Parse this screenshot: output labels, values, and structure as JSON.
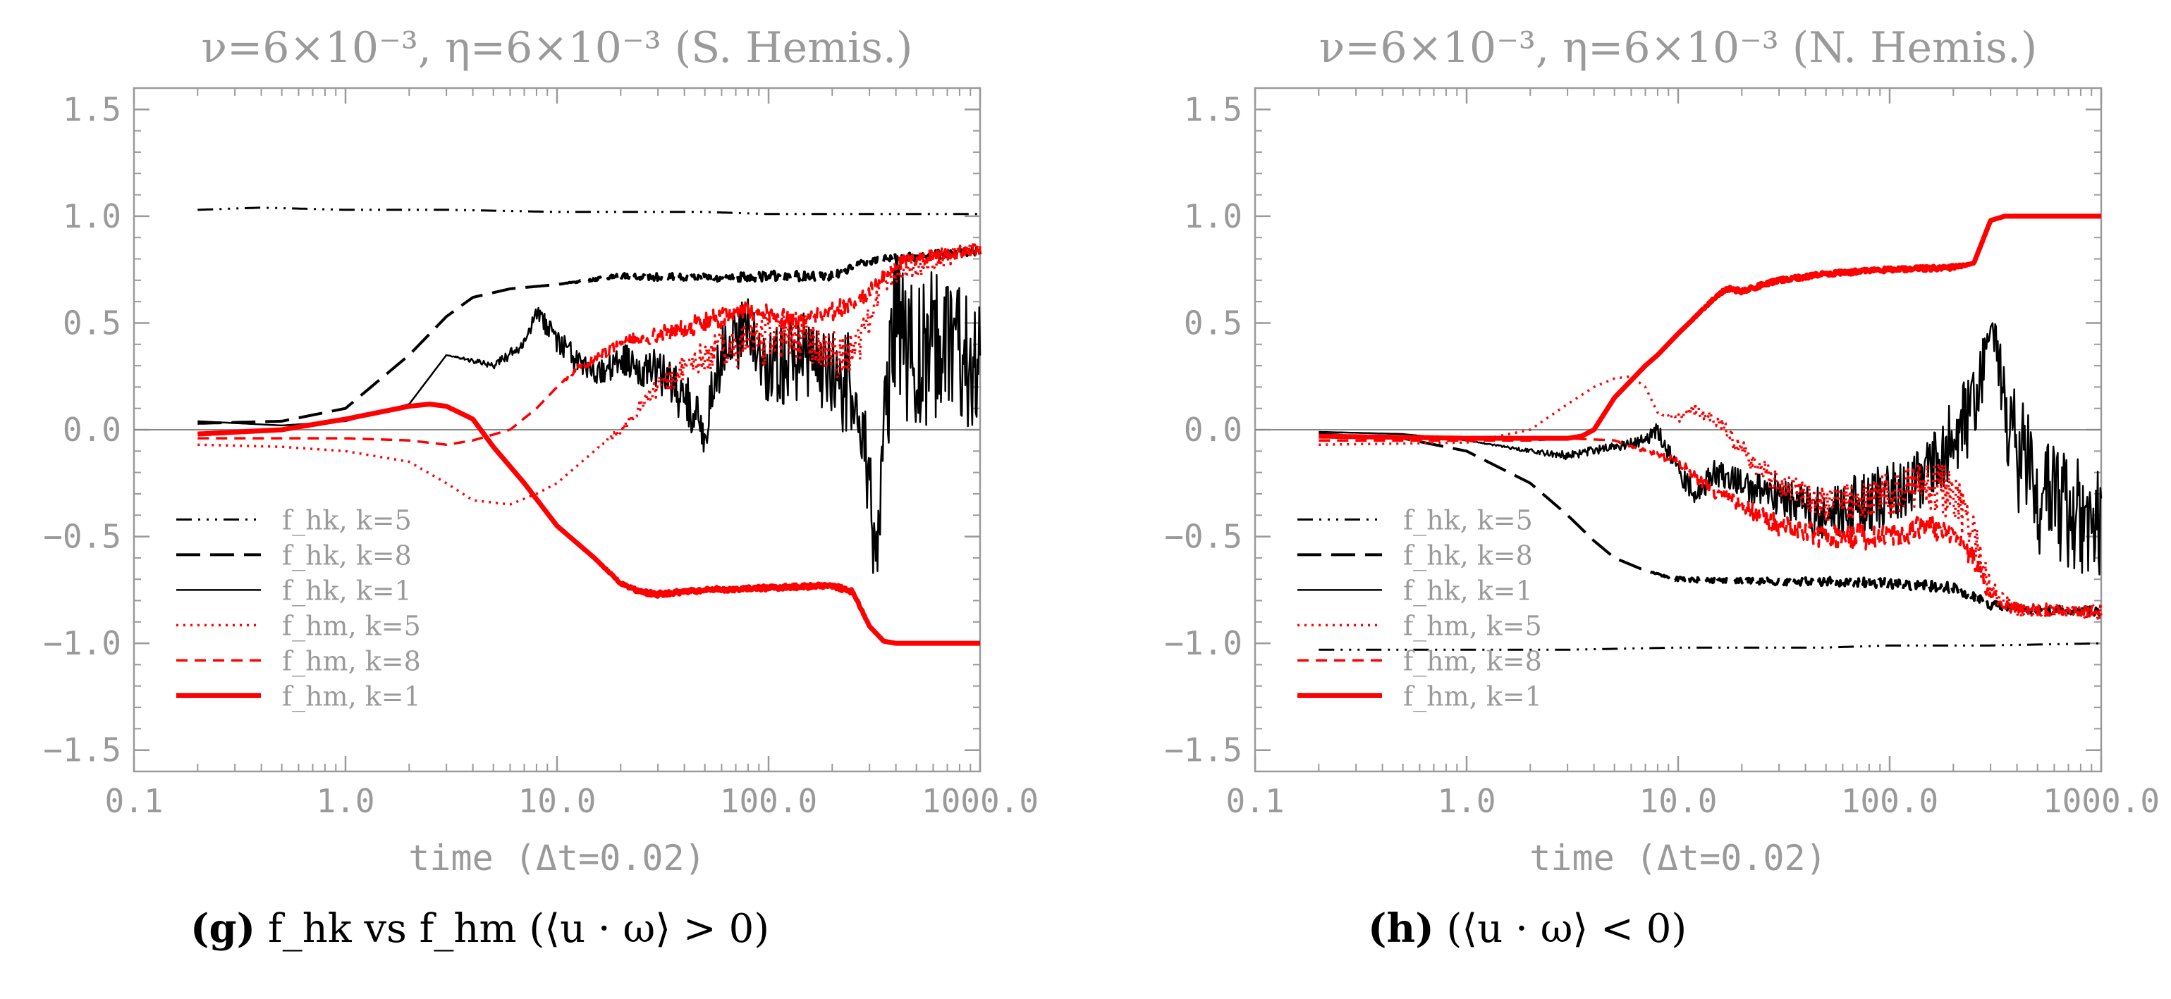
{
  "colors": {
    "black": "#000000",
    "red": "#ff0000",
    "axis": "#9a9a9a",
    "zero": "#888888"
  },
  "chart_data": [
    {
      "type": "line",
      "panel": "g",
      "title": "ν=6×10⁻³, η=6×10⁻³ (S. Hemis.)",
      "xlabel": "time (Δt=0.02)",
      "ylabel": "",
      "xscale": "log",
      "xlim": [
        0.1,
        1000.0
      ],
      "ylim": [
        -1.6,
        1.6
      ],
      "xticks": [
        "0.1",
        "1.0",
        "10.0",
        "100.0",
        "1000.0"
      ],
      "yticks": [
        "1.5",
        "1.0",
        "0.5",
        "0.0",
        "−0.5",
        "−1.0",
        "−1.5"
      ],
      "ytick_values": [
        1.5,
        1.0,
        0.5,
        0.0,
        -0.5,
        -1.0,
        -1.5
      ],
      "xtick_values": [
        0.1,
        1,
        10,
        100,
        1000
      ],
      "zero_line": true,
      "legend_position": "lower-left",
      "legend": [
        {
          "label": "f_hk, k=5",
          "color": "#000000",
          "style": "dashdotdot"
        },
        {
          "label": "f_hk, k=8",
          "color": "#000000",
          "style": "longdash"
        },
        {
          "label": "f_hk, k=1",
          "color": "#000000",
          "style": "solid"
        },
        {
          "label": "f_hm, k=5",
          "color": "#ff0000",
          "style": "dotted"
        },
        {
          "label": "f_hm, k=8",
          "color": "#ff0000",
          "style": "dashed"
        },
        {
          "label": "f_hm, k=1",
          "color": "#ff0000",
          "style": "thick"
        }
      ],
      "series": [
        {
          "name": "f_hk, k=5",
          "color": "#000000",
          "style": "dashdotdot",
          "x": [
            0.2,
            0.4,
            1,
            3,
            10,
            50,
            100,
            300,
            1000
          ],
          "y": [
            1.03,
            1.04,
            1.03,
            1.03,
            1.02,
            1.02,
            1.01,
            1.01,
            1.01
          ]
        },
        {
          "name": "f_hk, k=8",
          "color": "#000000",
          "style": "longdash",
          "x": [
            0.2,
            0.5,
            1,
            2,
            3,
            4,
            6,
            10,
            20,
            50,
            100,
            200,
            300,
            1000
          ],
          "y": [
            0.03,
            0.04,
            0.1,
            0.35,
            0.53,
            0.62,
            0.66,
            0.68,
            0.72,
            0.71,
            0.72,
            0.72,
            0.79,
            0.84
          ],
          "noise": [
            0,
            0,
            0,
            0,
            0,
            0,
            0,
            0,
            0.015,
            0.02,
            0.025,
            0.02,
            0.02,
            0.02
          ]
        },
        {
          "name": "f_hk, k=1",
          "color": "#000000",
          "style": "solid",
          "x": [
            0.2,
            0.5,
            1,
            2,
            3,
            5,
            7,
            8,
            10,
            13,
            15,
            20,
            30,
            50,
            60,
            80,
            100,
            150,
            200,
            250,
            300,
            320,
            350,
            400,
            500,
            600,
            800,
            1000
          ],
          "y": [
            0.04,
            0.02,
            0.04,
            0.12,
            0.35,
            0.3,
            0.4,
            0.55,
            0.42,
            0.3,
            0.25,
            0.32,
            0.28,
            0.02,
            0.35,
            0.45,
            0.3,
            0.35,
            0.25,
            0.2,
            -0.25,
            -0.6,
            0.0,
            0.5,
            0.3,
            0.4,
            0.35,
            0.3
          ],
          "noise": [
            0,
            0,
            0,
            0,
            0,
            0.02,
            0.03,
            0.04,
            0.06,
            0.06,
            0.06,
            0.08,
            0.1,
            0.15,
            0.15,
            0.18,
            0.2,
            0.2,
            0.22,
            0.25,
            0.25,
            0.2,
            0.3,
            0.35,
            0.35,
            0.35,
            0.35,
            0.3
          ]
        },
        {
          "name": "f_hm, k=5",
          "color": "#ff0000",
          "style": "dotted",
          "x": [
            0.2,
            0.5,
            1,
            2,
            3,
            4,
            6,
            8,
            10,
            15,
            20,
            30,
            50,
            80,
            100,
            150,
            200,
            250,
            300,
            350,
            1000
          ],
          "y": [
            -0.07,
            -0.08,
            -0.1,
            -0.15,
            -0.25,
            -0.33,
            -0.35,
            -0.3,
            -0.25,
            -0.1,
            0.0,
            0.2,
            0.35,
            0.4,
            0.42,
            0.45,
            0.35,
            0.35,
            0.5,
            0.7,
            0.86
          ],
          "noise": [
            0,
            0,
            0,
            0,
            0,
            0,
            0,
            0,
            0,
            0,
            0.02,
            0.05,
            0.08,
            0.1,
            0.12,
            0.12,
            0.12,
            0.1,
            0.08,
            0.05,
            0.03
          ]
        },
        {
          "name": "f_hm, k=8",
          "color": "#ff0000",
          "style": "dashed",
          "x": [
            0.2,
            1,
            2,
            3,
            4,
            6,
            8,
            10,
            13,
            20,
            30,
            50,
            70,
            100,
            150,
            200,
            250,
            300,
            400,
            1000
          ],
          "y": [
            -0.04,
            -0.04,
            -0.05,
            -0.07,
            -0.05,
            0.0,
            0.1,
            0.2,
            0.3,
            0.4,
            0.45,
            0.5,
            0.55,
            0.55,
            0.5,
            0.55,
            0.6,
            0.65,
            0.78,
            0.85
          ],
          "noise": [
            0,
            0,
            0,
            0,
            0,
            0,
            0,
            0,
            0.02,
            0.03,
            0.04,
            0.05,
            0.05,
            0.05,
            0.05,
            0.05,
            0.04,
            0.04,
            0.03,
            0.03
          ]
        },
        {
          "name": "f_hm, k=1",
          "color": "#ff0000",
          "style": "thick",
          "x": [
            0.2,
            0.5,
            1,
            2,
            2.5,
            3,
            4,
            5,
            7,
            10,
            15,
            20,
            25,
            30,
            50,
            100,
            200,
            250,
            300,
            350,
            400,
            1000
          ],
          "y": [
            -0.02,
            0.0,
            0.05,
            0.11,
            0.12,
            0.11,
            0.05,
            -0.08,
            -0.25,
            -0.45,
            -0.6,
            -0.72,
            -0.76,
            -0.77,
            -0.75,
            -0.74,
            -0.73,
            -0.76,
            -0.92,
            -0.99,
            -1.0,
            -1.0
          ],
          "noise": [
            0,
            0,
            0,
            0,
            0,
            0,
            0,
            0,
            0,
            0,
            0,
            0.005,
            0.01,
            0.01,
            0.01,
            0.01,
            0.01,
            0.01,
            0,
            0,
            0,
            0
          ]
        }
      ]
    },
    {
      "type": "line",
      "panel": "h",
      "title": "ν=6×10⁻³, η=6×10⁻³ (N. Hemis.)",
      "xlabel": "time (Δt=0.02)",
      "ylabel": "",
      "xscale": "log",
      "xlim": [
        0.1,
        1000.0
      ],
      "ylim": [
        -1.6,
        1.6
      ],
      "xticks": [
        "0.1",
        "1.0",
        "10.0",
        "100.0",
        "1000.0"
      ],
      "yticks": [
        "1.5",
        "1.0",
        "0.5",
        "0.0",
        "−0.5",
        "−1.0",
        "−1.5"
      ],
      "ytick_values": [
        1.5,
        1.0,
        0.5,
        0.0,
        -0.5,
        -1.0,
        -1.5
      ],
      "xtick_values": [
        0.1,
        1,
        10,
        100,
        1000
      ],
      "zero_line": true,
      "legend_position": "lower-left",
      "legend": [
        {
          "label": "f_hk, k=5",
          "color": "#000000",
          "style": "dashdotdot"
        },
        {
          "label": "f_hk, k=8",
          "color": "#000000",
          "style": "longdash"
        },
        {
          "label": "f_hk, k=1",
          "color": "#000000",
          "style": "solid"
        },
        {
          "label": "f_hm, k=5",
          "color": "#ff0000",
          "style": "dotted"
        },
        {
          "label": "f_hm, k=8",
          "color": "#ff0000",
          "style": "dashed"
        },
        {
          "label": "f_hm, k=1",
          "color": "#ff0000",
          "style": "thick"
        }
      ],
      "series": [
        {
          "name": "f_hk, k=5",
          "color": "#000000",
          "style": "dashdotdot",
          "x": [
            0.2,
            0.5,
            1,
            3,
            10,
            50,
            100,
            300,
            1000
          ],
          "y": [
            -1.03,
            -1.03,
            -1.03,
            -1.03,
            -1.02,
            -1.02,
            -1.01,
            -1.01,
            -1.0
          ]
        },
        {
          "name": "f_hk, k=8",
          "color": "#000000",
          "style": "longdash",
          "x": [
            0.2,
            0.5,
            1,
            2,
            3,
            4,
            5,
            7,
            10,
            20,
            50,
            100,
            200,
            250,
            300,
            400,
            1000
          ],
          "y": [
            -0.02,
            -0.04,
            -0.1,
            -0.25,
            -0.4,
            -0.52,
            -0.6,
            -0.66,
            -0.7,
            -0.71,
            -0.71,
            -0.72,
            -0.74,
            -0.78,
            -0.82,
            -0.84,
            -0.85
          ],
          "noise": [
            0,
            0,
            0,
            0,
            0,
            0,
            0,
            0,
            0.01,
            0.015,
            0.02,
            0.025,
            0.025,
            0.02,
            0.02,
            0.02,
            0.02
          ]
        },
        {
          "name": "f_hk, k=1",
          "color": "#000000",
          "style": "solid",
          "x": [
            0.2,
            0.5,
            1,
            2,
            3,
            5,
            7,
            8,
            10,
            12,
            15,
            20,
            30,
            50,
            70,
            100,
            150,
            200,
            250,
            280,
            300,
            320,
            350,
            400,
            500,
            700,
            1000
          ],
          "y": [
            -0.01,
            -0.02,
            -0.05,
            -0.1,
            -0.12,
            -0.08,
            -0.05,
            0.0,
            -0.2,
            -0.3,
            -0.2,
            -0.25,
            -0.3,
            -0.4,
            -0.35,
            -0.3,
            -0.2,
            -0.05,
            0.1,
            0.3,
            0.45,
            0.4,
            0.1,
            -0.1,
            -0.3,
            -0.35,
            -0.45
          ],
          "noise": [
            0,
            0,
            0,
            0.01,
            0.02,
            0.02,
            0.03,
            0.04,
            0.05,
            0.06,
            0.06,
            0.08,
            0.1,
            0.12,
            0.15,
            0.15,
            0.15,
            0.2,
            0.2,
            0.15,
            0.05,
            0.1,
            0.2,
            0.3,
            0.3,
            0.3,
            0.3
          ]
        },
        {
          "name": "f_hm, k=5",
          "color": "#ff0000",
          "style": "dotted",
          "x": [
            0.2,
            1,
            2,
            3,
            4,
            5,
            6,
            7,
            8,
            10,
            12,
            15,
            20,
            30,
            50,
            100,
            150,
            200,
            250,
            300,
            400,
            1000
          ],
          "y": [
            -0.07,
            -0.06,
            0.0,
            0.12,
            0.2,
            0.24,
            0.25,
            0.2,
            0.08,
            0.05,
            0.1,
            0.05,
            -0.1,
            -0.25,
            -0.35,
            -0.3,
            -0.25,
            -0.3,
            -0.5,
            -0.75,
            -0.85,
            -0.86
          ],
          "noise": [
            0,
            0,
            0,
            0,
            0,
            0,
            0,
            0,
            0,
            0.02,
            0.03,
            0.04,
            0.05,
            0.06,
            0.08,
            0.1,
            0.12,
            0.12,
            0.1,
            0.05,
            0.03,
            0.03
          ]
        },
        {
          "name": "f_hm, k=8",
          "color": "#ff0000",
          "style": "dashed",
          "x": [
            0.2,
            1,
            2,
            3,
            5,
            7,
            10,
            15,
            20,
            30,
            50,
            100,
            150,
            200,
            250,
            300,
            400,
            1000
          ],
          "y": [
            -0.05,
            -0.05,
            -0.05,
            -0.04,
            -0.05,
            -0.1,
            -0.15,
            -0.3,
            -0.35,
            -0.45,
            -0.5,
            -0.5,
            -0.45,
            -0.5,
            -0.6,
            -0.78,
            -0.84,
            -0.85
          ],
          "noise": [
            0,
            0,
            0,
            0,
            0,
            0.01,
            0.02,
            0.03,
            0.04,
            0.05,
            0.06,
            0.06,
            0.06,
            0.05,
            0.05,
            0.04,
            0.03,
            0.03
          ]
        },
        {
          "name": "f_hm, k=1",
          "color": "#ff0000",
          "style": "thick",
          "x": [
            0.2,
            1,
            2,
            3,
            3.5,
            4,
            5,
            7,
            8,
            10,
            15,
            17,
            20,
            30,
            50,
            100,
            200,
            250,
            300,
            350,
            1000
          ],
          "y": [
            -0.03,
            -0.04,
            -0.04,
            -0.04,
            -0.03,
            0.0,
            0.15,
            0.3,
            0.35,
            0.45,
            0.62,
            0.66,
            0.65,
            0.7,
            0.73,
            0.75,
            0.76,
            0.78,
            0.98,
            1.0,
            1.0
          ],
          "noise": [
            0,
            0,
            0,
            0,
            0,
            0,
            0,
            0,
            0,
            0,
            0.005,
            0.01,
            0.01,
            0.01,
            0.01,
            0.01,
            0.01,
            0,
            0,
            0,
            0
          ]
        }
      ]
    }
  ],
  "captions": {
    "g": {
      "tag": "(g)",
      "text": "f_hk vs f_hm (⟨u · ω⟩ > 0)"
    },
    "h": {
      "tag": "(h)",
      "text": "(⟨u · ω⟩ < 0)"
    }
  }
}
